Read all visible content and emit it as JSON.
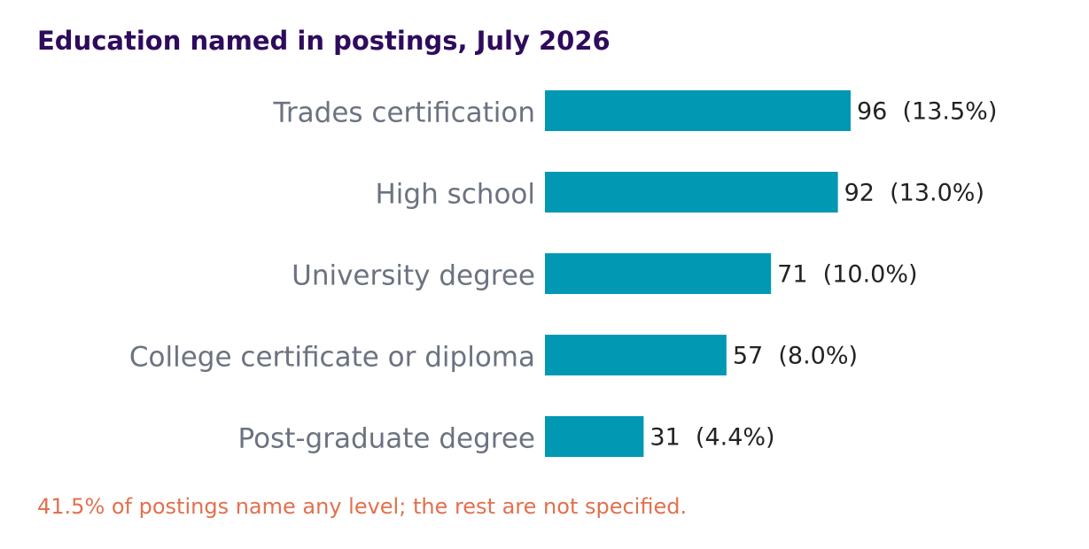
{
  "chart_data": {
    "type": "bar",
    "orientation": "horizontal",
    "title": "Education named in postings, July 2026",
    "categories": [
      "Trades certification",
      "High school",
      "University degree",
      "College certificate or diploma",
      "Post-graduate degree"
    ],
    "values": [
      96,
      92,
      71,
      57,
      31
    ],
    "value_labels": [
      "96  (13.5%)",
      "92  (13.0%)",
      "71  (10.0%)",
      "57  (8.0%)",
      "31  (4.4%)"
    ],
    "color": "#0098b3",
    "note": "41.5% of postings name any level; the rest are not specified."
  }
}
